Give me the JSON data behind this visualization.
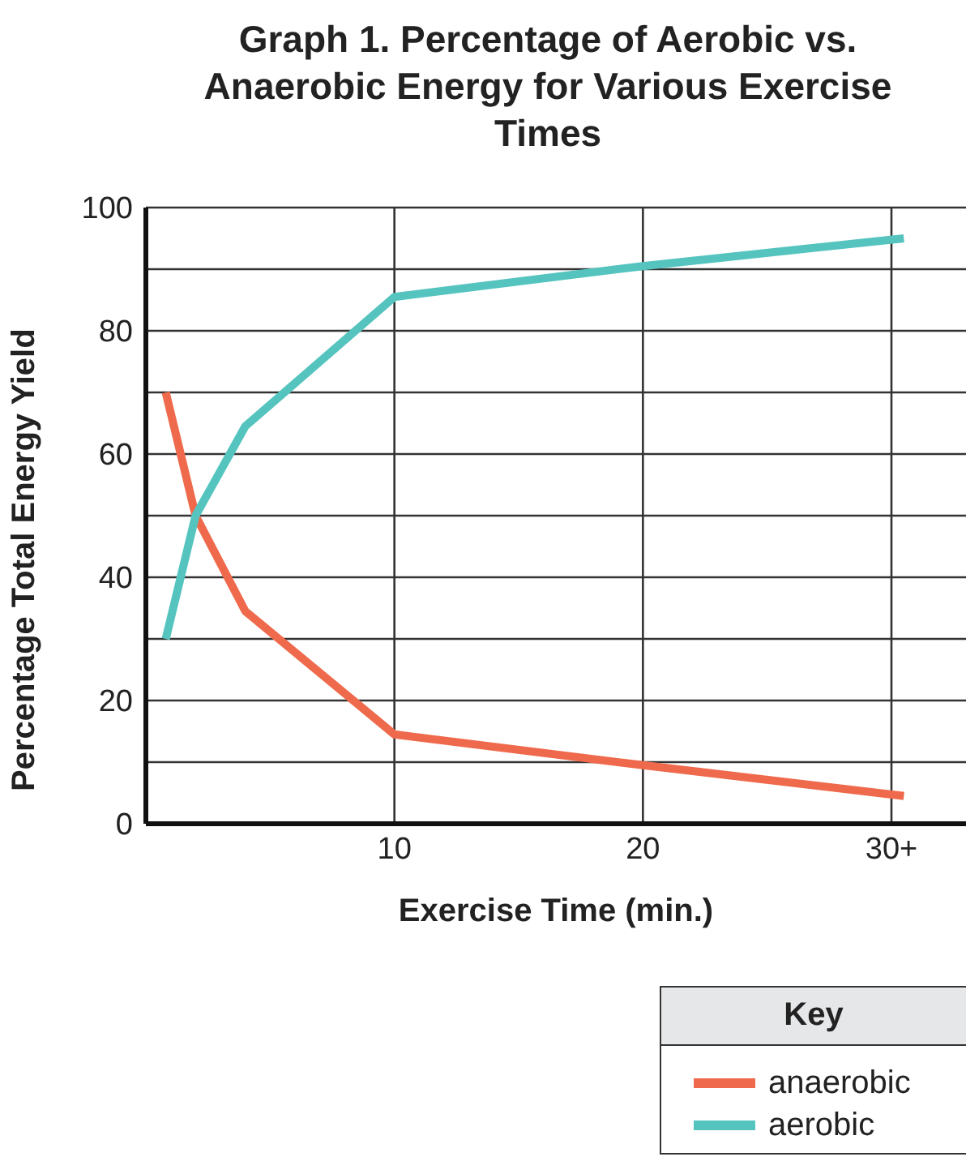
{
  "chart_data": {
    "type": "line",
    "title": "Graph 1. Percentage of Aerobic vs. Anaerobic Energy for Various Exercise Times",
    "xlabel": "Exercise Time (min.)",
    "ylabel": "Percentage Total Energy Yield",
    "legend_title": "Key",
    "x": [
      0.8,
      2,
      4,
      10,
      20,
      30.5
    ],
    "series": [
      {
        "name": "anaerobic",
        "color": "#ef6a4c",
        "values": [
          70,
          50,
          34.5,
          14.5,
          9.5,
          4.5
        ]
      },
      {
        "name": "aerobic",
        "color": "#55c4bf",
        "values": [
          30,
          50,
          64.5,
          85.5,
          90.5,
          95
        ]
      }
    ],
    "xlim": [
      0,
      33
    ],
    "xticks": [
      10,
      20,
      {
        "value": 30,
        "label": "30+"
      }
    ],
    "ylim": [
      0,
      100
    ],
    "yticks": [
      0,
      {
        "value": 10,
        "label": null
      },
      20,
      {
        "value": 30,
        "label": null
      },
      40,
      {
        "value": 50,
        "label": null
      },
      60,
      {
        "value": 70,
        "label": null
      },
      80,
      {
        "value": 90,
        "label": null
      },
      100
    ],
    "grid": true,
    "legend": "bottom right",
    "marker": "none",
    "line_style": "solid"
  }
}
